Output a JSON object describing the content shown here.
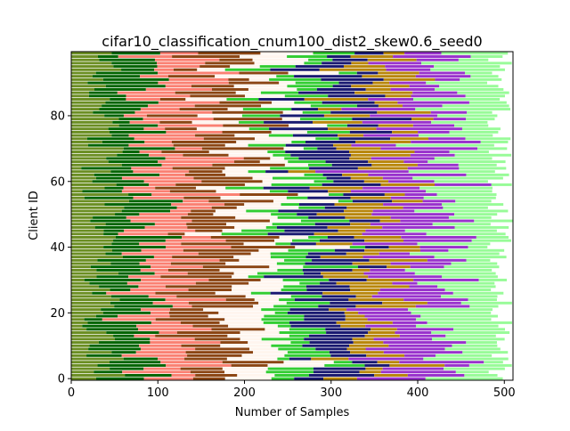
{
  "chart_data": {
    "type": "bar",
    "orientation": "horizontal-stacked",
    "title": "cifar10_classification_cnum100_dist2_skew0.6_seed0",
    "xlabel": "Number of Samples",
    "ylabel": "Client ID",
    "xlim": [
      0,
      510
    ],
    "ylim": [
      0,
      99
    ],
    "xticks": [
      "0",
      "100",
      "200",
      "300",
      "400",
      "500"
    ],
    "yticks": [
      "0",
      "20",
      "40",
      "60",
      "80"
    ],
    "grid": false,
    "legend": "none",
    "num_clients": 100,
    "class_colors": [
      "#6b8e23",
      "#006400",
      "#fa8072",
      "#8b4513",
      "#fff5ee",
      "#32cd32",
      "#191970",
      "#b8860b",
      "#9932cc",
      "#98fb98"
    ],
    "class_mean_counts": [
      40,
      50,
      60,
      60,
      50,
      40,
      50,
      50,
      70,
      70
    ],
    "total_range": [
      480,
      510
    ],
    "seed": 0
  }
}
